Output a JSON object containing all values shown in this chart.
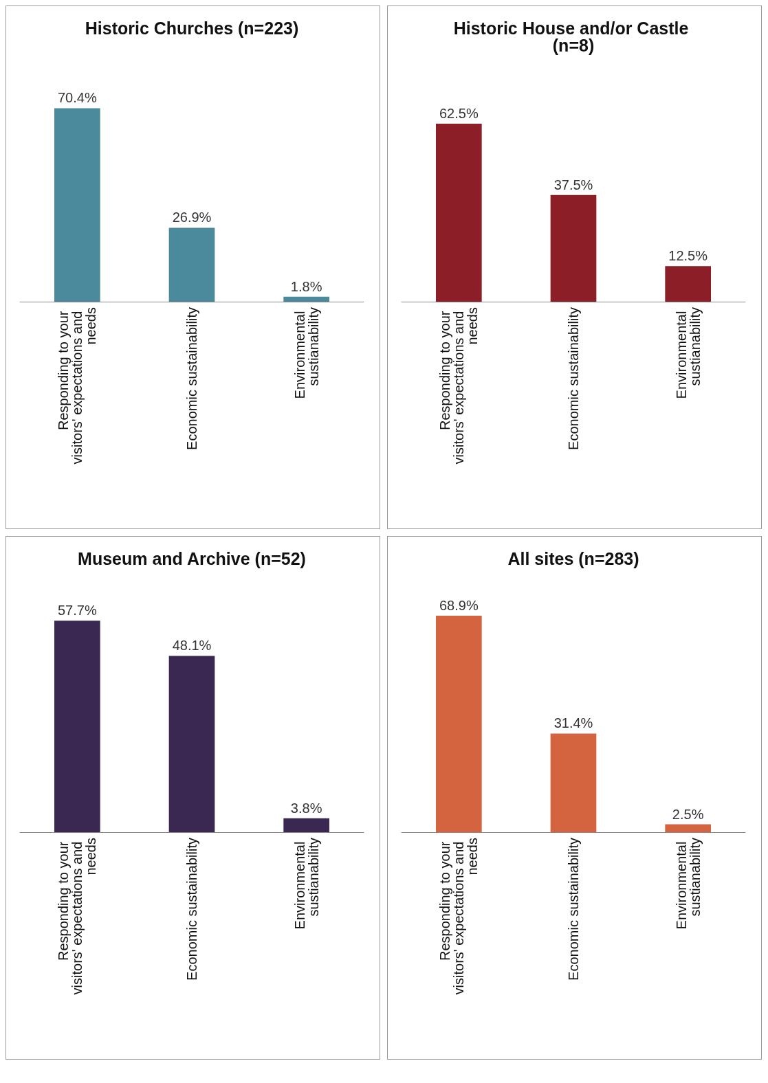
{
  "chart_data": [
    {
      "type": "bar",
      "title": "Historic Churches (n=223)",
      "categories": [
        "Responding to your visitors' expectations and needs",
        "Economic sustainability",
        "Environmental sustianability"
      ],
      "values": [
        70.4,
        26.9,
        1.8
      ],
      "value_labels": [
        "70.4%",
        "26.9%",
        "1.8%"
      ],
      "color": "#4a8a9c"
    },
    {
      "type": "bar",
      "title": "Historic House and/or Castle (n=8)",
      "categories": [
        "Responding to your visitors' expectations and needs",
        "Economic sustainability",
        "Environmental sustianability"
      ],
      "values": [
        62.5,
        37.5,
        12.5
      ],
      "value_labels": [
        "62.5%",
        "37.5%",
        "12.5%"
      ],
      "color": "#8b1e26"
    },
    {
      "type": "bar",
      "title": "Museum and Archive (n=52)",
      "categories": [
        "Responding to your visitors' expectations and needs",
        "Economic sustainability",
        "Environmental sustianability"
      ],
      "values": [
        57.7,
        48.1,
        3.8
      ],
      "value_labels": [
        "57.7%",
        "48.1%",
        "3.8%"
      ],
      "color": "#3b2852"
    },
    {
      "type": "bar",
      "title": "All sites (n=283)",
      "categories": [
        "Responding to your visitors' expectations and needs",
        "Economic sustainability",
        "Environmental sustianability"
      ],
      "values": [
        68.9,
        31.4,
        2.5
      ],
      "value_labels": [
        "68.9%",
        "31.4%",
        "2.5%"
      ],
      "color": "#d4633f"
    }
  ]
}
